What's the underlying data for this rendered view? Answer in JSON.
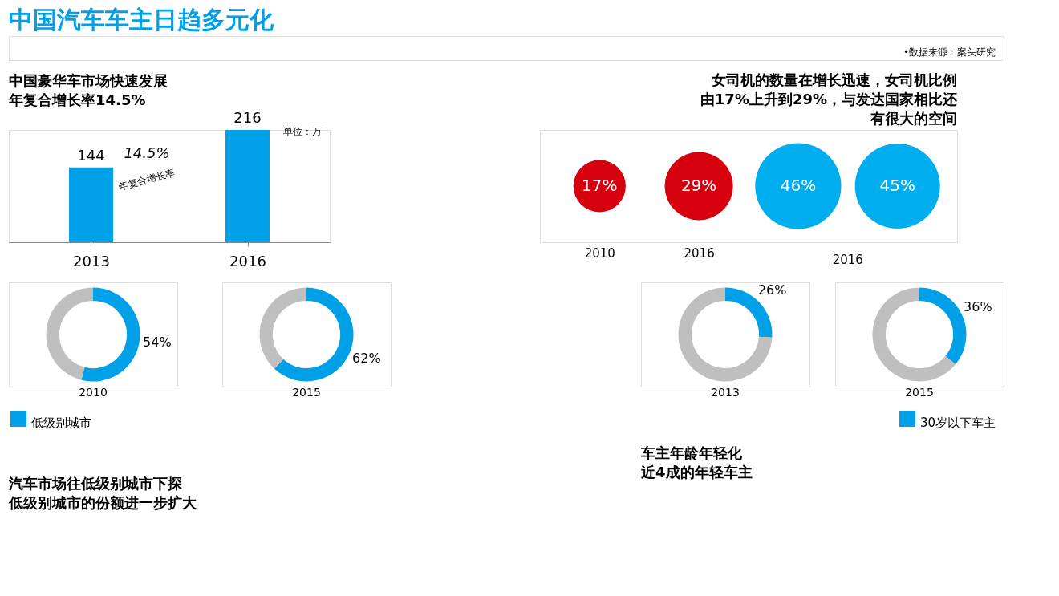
{
  "chart_data": [
    {
      "type": "other",
      "title": "中国汽车车主日趋多元化",
      "annotations": [
        "•数据来源：案头研究"
      ]
    },
    {
      "type": "bar",
      "title": "中国豪华车市场快速发展年复合增长率14.5%",
      "categories": [
        "2013",
        "2016"
      ],
      "values": [
        144,
        216
      ],
      "color": "#00a0e9",
      "data_labels": true,
      "annotations": [
        "单位：万",
        "14.5%",
        "年复合增长率"
      ]
    },
    {
      "type": "other",
      "title": "女司机的数量在增长迅速，女司机比例由17%上升到29%，与发达国家相比还有很大的空间",
      "categories": [
        "2010",
        "2016",
        null,
        null
      ],
      "values": [
        17,
        29,
        46,
        45
      ],
      "colors": [
        "#d7000f",
        "#d7000f",
        "#00aeef",
        "#00aeef"
      ],
      "value_labels": [
        "17%",
        "29%",
        "46%",
        "45%"
      ],
      "annotations": [
        "2016"
      ]
    },
    {
      "type": "donut",
      "title": "汽车市场往低级别城市下探低级别城市的份额进一步扩大",
      "categories": [
        "低级别城市",
        null
      ],
      "values": [
        54,
        46
      ],
      "colors": [
        "#00a0e9",
        "#bfbfbf"
      ],
      "value_labels": [
        "54%",
        null
      ],
      "annotations": [
        "2010"
      ],
      "legend": "bottom left"
    },
    {
      "type": "donut",
      "categories": [
        null,
        null
      ],
      "values": [
        62,
        38
      ],
      "colors": [
        "#00a0e9",
        "#bfbfbf"
      ],
      "value_labels": [
        "62%",
        null
      ],
      "annotations": [
        "2015"
      ]
    },
    {
      "type": "donut",
      "title": "车主年龄年轻化近4成的年轻车主",
      "categories": [
        null,
        null
      ],
      "values": [
        26,
        74
      ],
      "colors": [
        "#00a0e9",
        "#bfbfbf"
      ],
      "value_labels": [
        "26%",
        null
      ],
      "annotations": [
        "2013"
      ]
    },
    {
      "type": "donut",
      "categories": [
        "30岁以下车主",
        null
      ],
      "values": [
        36,
        64
      ],
      "colors": [
        "#00a0e9",
        "#bfbfbf"
      ],
      "value_labels": [
        "36%",
        null
      ],
      "annotations": [
        "2015"
      ],
      "legend": "bottom right"
    }
  ]
}
